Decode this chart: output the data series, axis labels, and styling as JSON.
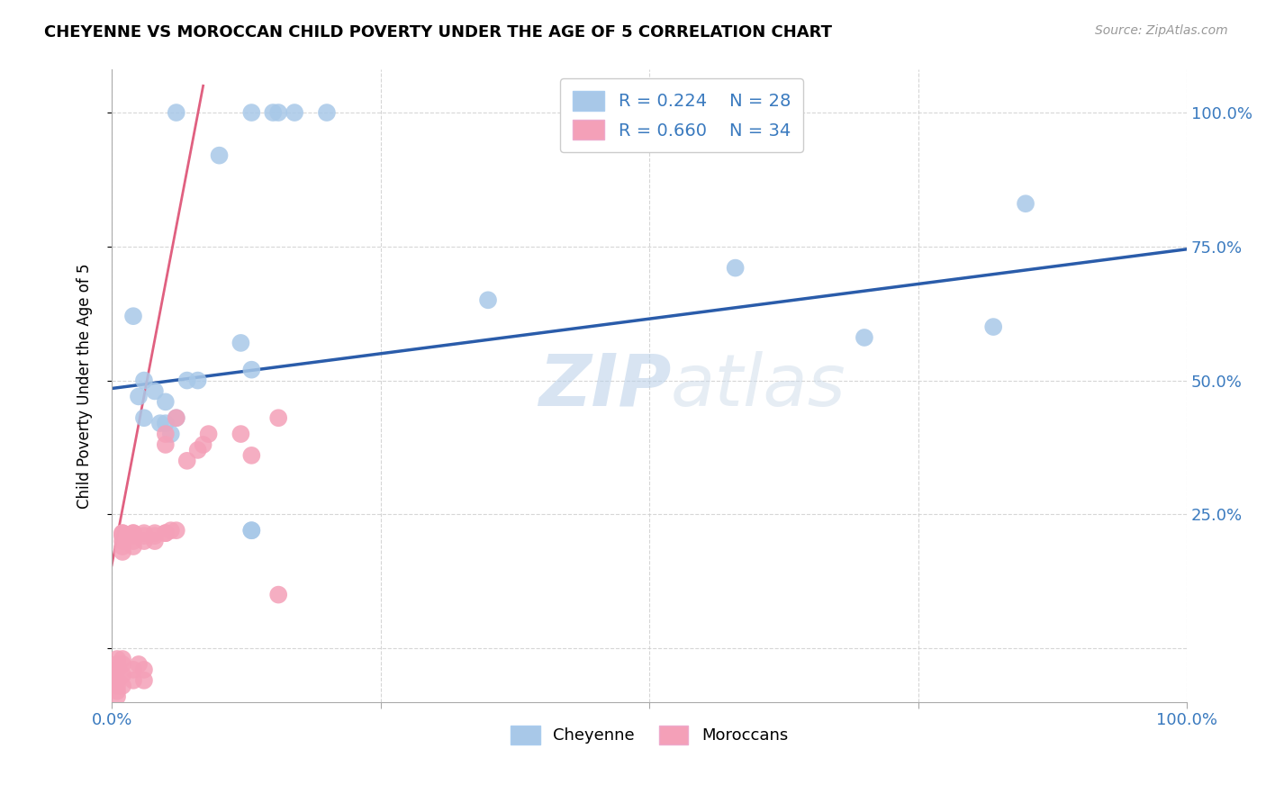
{
  "title": "CHEYENNE VS MOROCCAN CHILD POVERTY UNDER THE AGE OF 5 CORRELATION CHART",
  "source": "Source: ZipAtlas.com",
  "ylabel": "Child Poverty Under the Age of 5",
  "xlim": [
    0.0,
    1.0
  ],
  "ylim": [
    -0.1,
    1.08
  ],
  "cheyenne_color": "#a8c8e8",
  "moroccan_color": "#f4a0b8",
  "cheyenne_line_color": "#2a5caa",
  "moroccan_line_color": "#e06080",
  "legend_r_cheyenne": "R = 0.224",
  "legend_n_cheyenne": "N = 28",
  "legend_r_moroccan": "R = 0.660",
  "legend_n_moroccan": "N = 34",
  "watermark": "ZIPatlas",
  "cheyenne_x": [
    0.06,
    0.1,
    0.13,
    0.15,
    0.155,
    0.17,
    0.2,
    0.02,
    0.03,
    0.04,
    0.05,
    0.05,
    0.06,
    0.07,
    0.08,
    0.12,
    0.13,
    0.35,
    0.58,
    0.7,
    0.82,
    0.85,
    0.025,
    0.03,
    0.045,
    0.055,
    0.13,
    0.13
  ],
  "cheyenne_y": [
    1.0,
    0.92,
    1.0,
    1.0,
    1.0,
    1.0,
    1.0,
    0.62,
    0.5,
    0.48,
    0.46,
    0.42,
    0.43,
    0.5,
    0.5,
    0.57,
    0.52,
    0.65,
    0.71,
    0.58,
    0.6,
    0.83,
    0.47,
    0.43,
    0.42,
    0.4,
    0.22,
    0.22
  ],
  "moroccan_x": [
    0.06,
    0.08,
    0.01,
    0.01,
    0.01,
    0.01,
    0.01,
    0.01,
    0.01,
    0.02,
    0.02,
    0.02,
    0.02,
    0.02,
    0.02,
    0.03,
    0.03,
    0.03,
    0.04,
    0.04,
    0.04,
    0.05,
    0.05,
    0.05,
    0.05,
    0.055,
    0.06,
    0.07,
    0.085,
    0.09,
    0.12,
    0.13,
    0.155,
    0.155
  ],
  "moroccan_y": [
    0.43,
    0.37,
    0.215,
    0.215,
    0.21,
    0.21,
    0.2,
    0.19,
    0.18,
    0.215,
    0.215,
    0.21,
    0.21,
    0.2,
    0.19,
    0.215,
    0.21,
    0.2,
    0.215,
    0.21,
    0.2,
    0.4,
    0.38,
    0.215,
    0.215,
    0.22,
    0.22,
    0.35,
    0.38,
    0.4,
    0.4,
    0.36,
    0.43,
    0.1
  ],
  "moroccan_below_x": [
    0.005,
    0.005,
    0.005,
    0.005,
    0.005,
    0.005,
    0.005,
    0.005,
    0.01,
    0.01,
    0.01,
    0.01,
    0.02,
    0.02,
    0.025,
    0.03,
    0.03
  ],
  "moroccan_below_y": [
    -0.02,
    -0.03,
    -0.04,
    -0.05,
    -0.06,
    -0.07,
    -0.08,
    -0.09,
    -0.02,
    -0.03,
    -0.05,
    -0.07,
    -0.04,
    -0.06,
    -0.03,
    -0.04,
    -0.06
  ],
  "cheyenne_trend_x": [
    0.0,
    1.0
  ],
  "cheyenne_trend_y": [
    0.485,
    0.745
  ],
  "moroccan_trend_x": [
    0.0,
    0.085
  ],
  "moroccan_trend_y": [
    0.155,
    1.05
  ]
}
